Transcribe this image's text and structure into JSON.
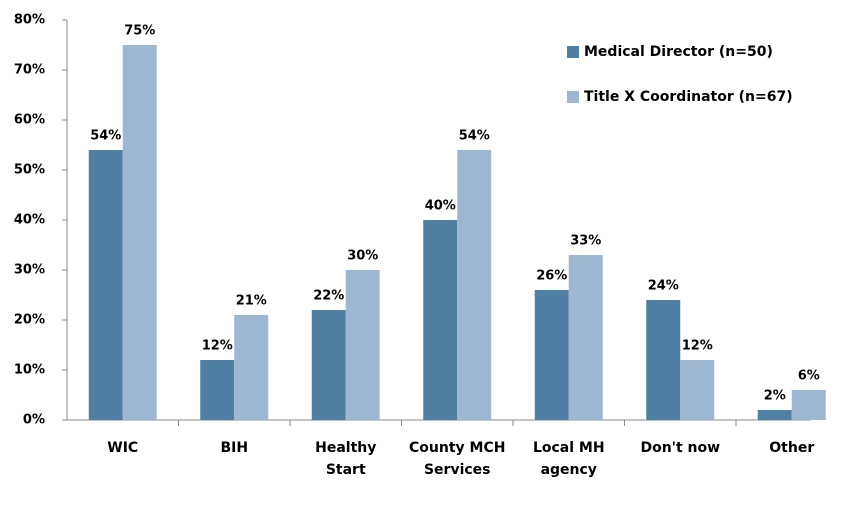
{
  "chart_data": {
    "type": "bar",
    "categories": [
      "WIC",
      "BIH",
      "Healthy Start",
      "County MCH Services",
      "Local MH agency",
      "Don't now",
      "Other"
    ],
    "series": [
      {
        "name": "Medical Director (n=50)",
        "color": "#4f7fa3",
        "values": [
          54,
          12,
          22,
          40,
          26,
          24,
          2
        ],
        "value_labels": [
          "54%",
          "12%",
          "22%",
          "40%",
          "26%",
          "24%",
          "2%"
        ]
      },
      {
        "name": "Title X Coordinator (n=67)",
        "color": "#9db7d2",
        "values": [
          75,
          21,
          30,
          54,
          33,
          12,
          6
        ],
        "value_labels": [
          "75%",
          "21%",
          "30%",
          "54%",
          "33%",
          "12%",
          "6%"
        ]
      }
    ],
    "ylim": [
      0,
      80
    ],
    "yticks": [
      {
        "value": 0,
        "label": "0%"
      },
      {
        "value": 10,
        "label": "10%"
      },
      {
        "value": 20,
        "label": "20%"
      },
      {
        "value": 30,
        "label": "30%"
      },
      {
        "value": 40,
        "label": "40%"
      },
      {
        "value": 50,
        "label": "50%"
      },
      {
        "value": 60,
        "label": "60%"
      },
      {
        "value": 70,
        "label": "70%"
      },
      {
        "value": 80,
        "label": "80%"
      }
    ],
    "legend": "top-right",
    "grid": false
  }
}
